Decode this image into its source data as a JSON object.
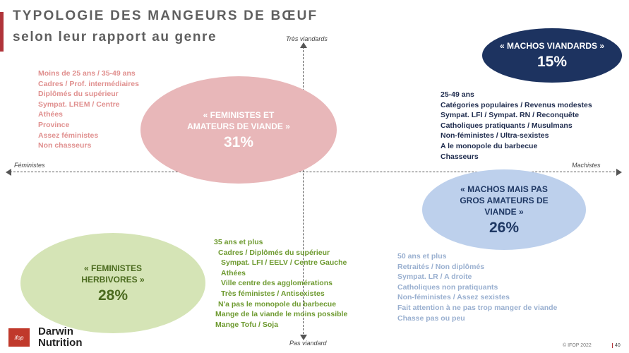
{
  "header": {
    "title": "TYPOLOGIE DES MANGEURS DE BŒUF",
    "subtitle": "selon leur rapport au genre"
  },
  "axes": {
    "top": "Très viandards",
    "bottom": "Pas viandard",
    "left": "Féministes",
    "right": "Machistes"
  },
  "segments": {
    "feministes_viande": {
      "name_line1": "« FEMINISTES ET",
      "name_line2": "AMATEURS DE VIANDE »",
      "pct": "31%",
      "color": "#e8b7b9",
      "traits": [
        "Moins de 25 ans / 35-49 ans",
        "Cadres / Prof. intermédiaires",
        "Diplômés du supérieur",
        "Sympat. LREM / Centre",
        "Athées",
        "Province",
        "Assez féministes",
        "Non chasseurs"
      ]
    },
    "machos_viandards": {
      "name_line1": "« MACHOS VIANDARDS »",
      "pct": "15%",
      "color": "#1d3360",
      "traits": [
        "25-49 ans",
        "Catégories populaires / Revenus modestes",
        "Sympat. LFI / Sympat. RN / Reconquête",
        "Catholiques pratiquants / Musulmans",
        "Non-féministes / Ultra-sexistes",
        "A le monopole du barbecue",
        "Chasseurs"
      ]
    },
    "machos_pas_gros": {
      "name_line1": "« MACHOS MAIS PAS",
      "name_line2": "GROS AMATEURS DE",
      "name_line3": "VIANDE »",
      "pct": "26%",
      "color": "#bdd0ec",
      "traits": [
        "50 ans et plus",
        "Retraités / Non diplômés",
        "Sympat. LR / A droite",
        "Catholiques non pratiquants",
        "Non-féministes / Assez sexistes",
        "Fait attention à ne pas trop manger de viande",
        "Chasse pas ou peu"
      ]
    },
    "feministes_herbivores": {
      "name_line1": "« FEMINISTES",
      "name_line2": "HERBIVORES »",
      "pct": "28%",
      "color": "#d5e4b6",
      "traits": [
        "35 ans et plus",
        "Cadres / Diplômés du supérieur",
        "Sympat. LFI / EELV / Centre Gauche",
        "Athées",
        "Ville centre des agglomérations",
        "Très féministes / Antisexistes",
        "N'a pas le monopole du barbecue",
        "Mange de la viande le moins possible",
        "Mange Tofu / Soja"
      ]
    }
  },
  "footer": {
    "logo_text": "ifop",
    "brand_line1": "Darwin",
    "brand_line2": "Nutrition",
    "copyright": "© IFOP 2022",
    "page": "40"
  }
}
